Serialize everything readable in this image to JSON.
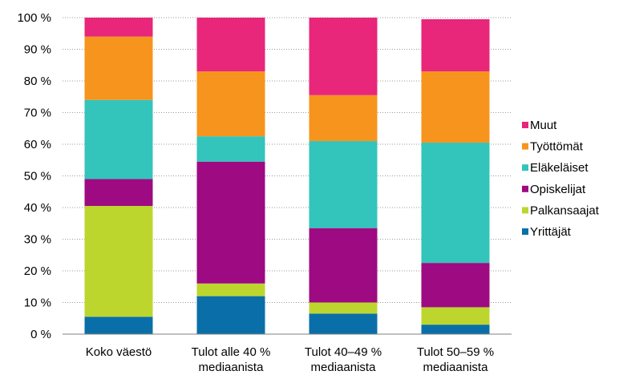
{
  "chart_data": {
    "type": "bar",
    "stacked": true,
    "categories": [
      [
        "Koko väestö"
      ],
      [
        "Tulot alle 40 %",
        "mediaanista"
      ],
      [
        "Tulot 40–49 %",
        "mediaanista"
      ],
      [
        "Tulot 50–59 %",
        "mediaanista"
      ]
    ],
    "series": [
      {
        "name": "Yrittäjät",
        "color": "#0a6fa8",
        "values": [
          5.5,
          12,
          6.5,
          3
        ]
      },
      {
        "name": "Palkansaajat",
        "color": "#bdd62e",
        "values": [
          35,
          4,
          3.5,
          5.5
        ]
      },
      {
        "name": "Opiskelijat",
        "color": "#9e0a82",
        "values": [
          8.5,
          38.5,
          23.5,
          14
        ]
      },
      {
        "name": "Eläkeläiset",
        "color": "#33c4bc",
        "values": [
          25,
          8,
          27.5,
          38
        ]
      },
      {
        "name": "Työttömät",
        "color": "#f7941d",
        "values": [
          20,
          20.5,
          14.5,
          22.5
        ]
      },
      {
        "name": "Muut",
        "color": "#e8267a",
        "values": [
          6,
          17,
          24.5,
          16.5
        ]
      }
    ],
    "ylim": [
      0,
      100
    ],
    "yticks": [
      "0 %",
      "10 %",
      "20 %",
      "30 %",
      "40 %",
      "50 %",
      "60 %",
      "70 %",
      "80 %",
      "90 %",
      "100 %"
    ],
    "grid": true,
    "legend": "right"
  }
}
